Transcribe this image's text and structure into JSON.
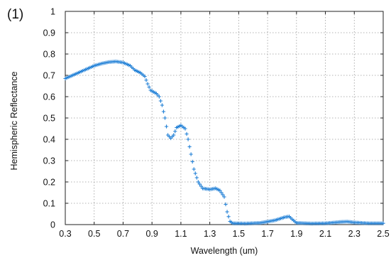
{
  "panel_label": "(1)",
  "chart_data": {
    "type": "scatter",
    "title": "",
    "xlabel": "Wavelength (um)",
    "ylabel": "Hemispheric Reflectance",
    "xlim": [
      0.3,
      2.5
    ],
    "ylim": [
      0,
      1
    ],
    "x_ticks": [
      "0.3",
      "0.5",
      "0.7",
      "0.9",
      "1.1",
      "1.3",
      "1.5",
      "1.7",
      "1.9",
      "2.1",
      "2.3",
      "2.5"
    ],
    "y_ticks": [
      "0",
      "0.1",
      "0.2",
      "0.3",
      "0.4",
      "0.5",
      "0.6",
      "0.7",
      "0.8",
      "0.9",
      "1"
    ],
    "grid": true,
    "legend": "none",
    "marker": "+",
    "marker_color": "#1f7fd6",
    "curve_points": [
      [
        0.3,
        0.685
      ],
      [
        0.35,
        0.7
      ],
      [
        0.4,
        0.715
      ],
      [
        0.45,
        0.73
      ],
      [
        0.5,
        0.745
      ],
      [
        0.55,
        0.755
      ],
      [
        0.6,
        0.762
      ],
      [
        0.65,
        0.765
      ],
      [
        0.7,
        0.76
      ],
      [
        0.75,
        0.745
      ],
      [
        0.78,
        0.725
      ],
      [
        0.82,
        0.712
      ],
      [
        0.85,
        0.695
      ],
      [
        0.87,
        0.66
      ],
      [
        0.89,
        0.63
      ],
      [
        0.93,
        0.615
      ],
      [
        0.95,
        0.6
      ],
      [
        0.97,
        0.56
      ],
      [
        0.99,
        0.5
      ],
      [
        1.01,
        0.42
      ],
      [
        1.03,
        0.405
      ],
      [
        1.05,
        0.42
      ],
      [
        1.07,
        0.455
      ],
      [
        1.1,
        0.465
      ],
      [
        1.13,
        0.45
      ],
      [
        1.15,
        0.4
      ],
      [
        1.17,
        0.33
      ],
      [
        1.19,
        0.26
      ],
      [
        1.22,
        0.2
      ],
      [
        1.25,
        0.17
      ],
      [
        1.3,
        0.165
      ],
      [
        1.34,
        0.17
      ],
      [
        1.37,
        0.16
      ],
      [
        1.4,
        0.13
      ],
      [
        1.42,
        0.06
      ],
      [
        1.44,
        0.015
      ],
      [
        1.46,
        0.006
      ],
      [
        1.55,
        0.005
      ],
      [
        1.65,
        0.008
      ],
      [
        1.75,
        0.02
      ],
      [
        1.82,
        0.035
      ],
      [
        1.85,
        0.038
      ],
      [
        1.87,
        0.025
      ],
      [
        1.9,
        0.008
      ],
      [
        2.0,
        0.005
      ],
      [
        2.1,
        0.006
      ],
      [
        2.2,
        0.012
      ],
      [
        2.25,
        0.014
      ],
      [
        2.3,
        0.01
      ],
      [
        2.4,
        0.006
      ],
      [
        2.5,
        0.006
      ]
    ]
  }
}
